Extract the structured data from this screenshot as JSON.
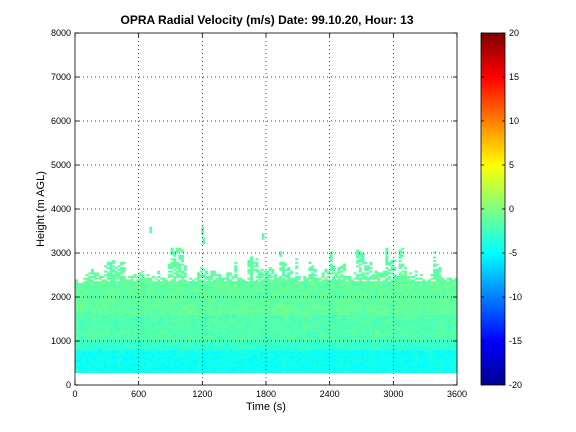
{
  "chart_data": {
    "type": "heatmap",
    "title": "OPRA Radial Velocity (m/s)  Date: 99.10.20, Hour: 13",
    "xlabel": "Time (s)",
    "ylabel": "Height (m AGL)",
    "xlim": [
      0,
      3600
    ],
    "ylim": [
      0,
      8000
    ],
    "xticks": [
      "0",
      "600",
      "1200",
      "1800",
      "2400",
      "3000",
      "3600"
    ],
    "yticks": [
      "0",
      "1000",
      "2000",
      "3000",
      "4000",
      "5000",
      "6000",
      "7000",
      "8000"
    ],
    "grid": true,
    "colorbar": {
      "clim": [
        -20,
        20
      ],
      "ticks": [
        "-20",
        "-15",
        "-10",
        "-5",
        "0",
        "5",
        "10",
        "15",
        "20"
      ],
      "placement": "right"
    },
    "data_extent": {
      "height_min": 280,
      "height_max_typical": 2400,
      "height_max_peak": 3600
    },
    "velocity_layers": [
      {
        "height_from": 280,
        "height_to": 800,
        "velocity": -4.5
      },
      {
        "height_from": 800,
        "height_to": 1000,
        "velocity": -3.0
      },
      {
        "height_from": 1000,
        "height_to": 1600,
        "velocity": -1.8
      },
      {
        "height_from": 1600,
        "height_to": 2600,
        "velocity": -1.2
      },
      {
        "height_from": 2600,
        "height_to": 3600,
        "velocity": -1.5
      }
    ]
  }
}
